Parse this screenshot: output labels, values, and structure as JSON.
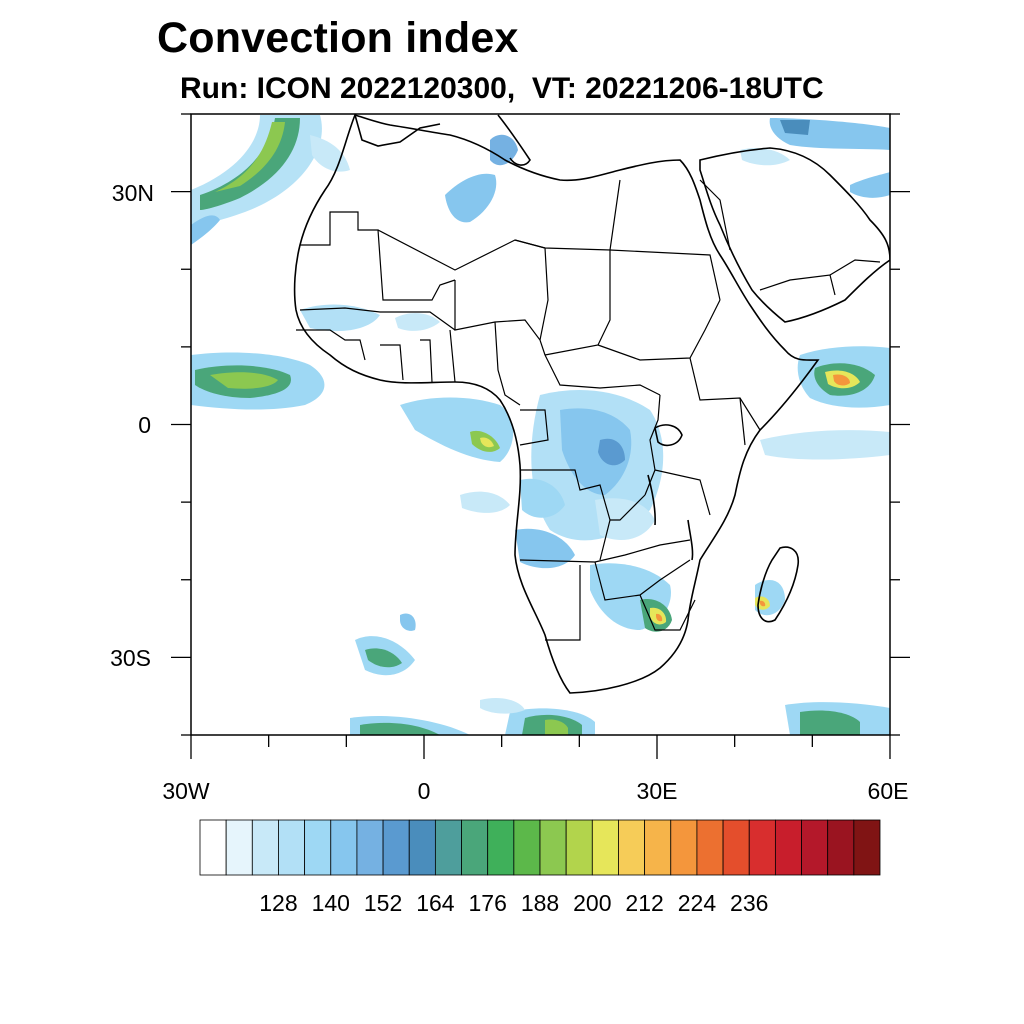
{
  "title": "Convection index",
  "subtitle": "Run: ICON 2022120300,  VT: 20221206-18UTC",
  "axes": {
    "x_ticks": [
      {
        "lon": -30,
        "label": "30W"
      },
      {
        "lon": 0,
        "label": "0"
      },
      {
        "lon": 30,
        "label": "30E"
      },
      {
        "lon": 60,
        "label": "60E"
      }
    ],
    "y_ticks": [
      {
        "lat": 30,
        "label": "30N"
      },
      {
        "lat": 0,
        "label": "0"
      },
      {
        "lat": -30,
        "label": "30S"
      }
    ],
    "lon_range": [
      -30,
      60
    ],
    "lat_range": [
      -40,
      40
    ]
  },
  "colorbar": {
    "colors": [
      "#ffffff",
      "#e6f5fc",
      "#c8e9f8",
      "#b2e0f6",
      "#9ed8f4",
      "#86c6ee",
      "#75b1e2",
      "#5a9ad0",
      "#4a8dbc",
      "#4e9e9c",
      "#4aa67a",
      "#3fb05a",
      "#5cb84a",
      "#8cc850",
      "#b2d44c",
      "#e6e65a",
      "#f6cc58",
      "#f6b44a",
      "#f4963c",
      "#ec7030",
      "#e44e2c",
      "#d82e2e",
      "#c81e2c",
      "#b4182a",
      "#9a1420",
      "#801414"
    ],
    "labels": [
      "128",
      "140",
      "152",
      "164",
      "176",
      "188",
      "200",
      "212",
      "224",
      "236"
    ]
  }
}
